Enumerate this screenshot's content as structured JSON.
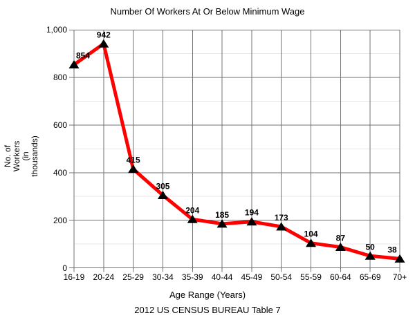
{
  "caption": "2012 US CENSUS BUREAU Table 7",
  "chart_data": {
    "type": "line",
    "title": "Number Of Workers At Or Below Minimum Wage",
    "xlabel": "Age Range (Years)",
    "ylabel": "No. of\nWorkers\n(in\nthousands)",
    "categories": [
      "16-19",
      "20-24",
      "25-29",
      "30-34",
      "35-39",
      "40-44",
      "45-49",
      "50-54",
      "55-59",
      "60-64",
      "65-69",
      "70+"
    ],
    "series": [
      {
        "name": "Workers",
        "values": [
          854,
          942,
          415,
          305,
          204,
          185,
          194,
          173,
          104,
          87,
          50,
          38
        ]
      }
    ],
    "data_labels": [
      "854",
      "942",
      "415",
      "305",
      "204",
      "185",
      "194",
      "173",
      "104",
      "87",
      "50",
      "38"
    ],
    "ylim": [
      0,
      1000
    ],
    "y_tick_values": [
      0,
      200,
      400,
      600,
      800,
      1000
    ],
    "y_tick_labels": [
      "0",
      "200",
      "400",
      "600",
      "800",
      "1,000"
    ],
    "y_minor_tick_values": [
      100,
      300,
      500,
      700,
      900
    ],
    "grid": "major-and-minor-horizontal, vertical-per-category, framed",
    "legend": "none",
    "marker": "triangle-up",
    "colors": {
      "line": "#ff0000",
      "marker": "#000000",
      "label_text": "#000000",
      "major_grid": "#717171",
      "minor_grid": "#e7e7e7",
      "axis": "#717171"
    }
  }
}
